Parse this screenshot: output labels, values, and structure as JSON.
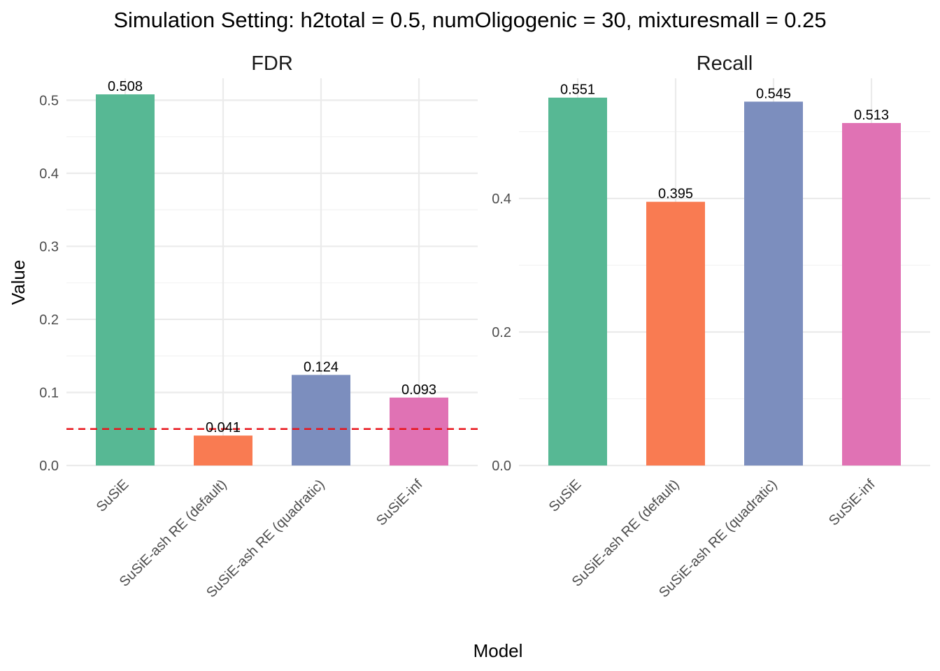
{
  "chart_data": {
    "title": "Simulation Setting: h2total = 0.5, numOligogenic = 30, mixturesmall = 0.25",
    "xlabel": "Model",
    "ylabel": "Value",
    "type": "bar",
    "categories": [
      "SuSiE",
      "SuSiE-ash RE (default)",
      "SuSiE-ash RE (quadratic)",
      "SuSiE-inf"
    ],
    "colors": [
      "#57b894",
      "#f97b52",
      "#7c8ebe",
      "#e072b4"
    ],
    "grid": true,
    "legend": "none",
    "panels": [
      {
        "title": "FDR",
        "values": [
          0.508,
          0.041,
          0.124,
          0.093
        ],
        "labels": [
          "0.508",
          "0.041",
          "0.124",
          "0.093"
        ],
        "ylim": [
          0,
          0.53
        ],
        "yticks": [
          0.0,
          0.1,
          0.2,
          0.3,
          0.4,
          0.5
        ],
        "ytick_labels": [
          "0.0",
          "0.1",
          "0.2",
          "0.3",
          "0.4",
          "0.5"
        ],
        "reference_line": {
          "y": 0.05,
          "color": "#e8141b",
          "style": "dashed"
        }
      },
      {
        "title": "Recall",
        "values": [
          0.551,
          0.395,
          0.545,
          0.513
        ],
        "labels": [
          "0.551",
          "0.395",
          "0.545",
          "0.513"
        ],
        "ylim": [
          0,
          0.58
        ],
        "yticks": [
          0.0,
          0.2,
          0.4
        ],
        "ytick_labels": [
          "0.0",
          "0.2",
          "0.4"
        ]
      }
    ]
  }
}
